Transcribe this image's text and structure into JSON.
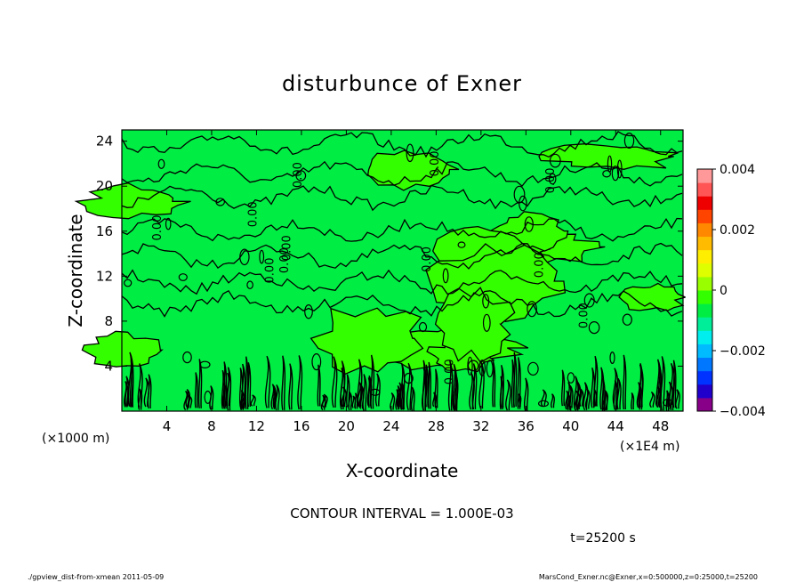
{
  "chart_data": {
    "type": "heatmap",
    "title": "disturbunce of Exner",
    "xlabel": "X-coordinate",
    "ylabel": "Z-coordinate",
    "x_unit": "(×1000 m)",
    "x_unit_secondary": "(×1E4 m)",
    "x_ticks": [
      4,
      8,
      12,
      16,
      20,
      24,
      28,
      32,
      36,
      40,
      44,
      48
    ],
    "y_ticks": [
      4,
      8,
      12,
      16,
      20,
      24
    ],
    "xlim": [
      0,
      50
    ],
    "ylim": [
      0,
      25
    ],
    "colorbar": {
      "ticks": [
        0.004,
        0.002,
        0,
        -0.002,
        -0.004
      ],
      "tick_labels": [
        "0.004",
        "0.002",
        "0",
        "−0.002",
        "−0.004"
      ],
      "range": [
        -0.004,
        0.004
      ],
      "colors": [
        "#880088",
        "#2200cc",
        "#0033ff",
        "#0077ff",
        "#00bbff",
        "#00eeee",
        "#00ee99",
        "#00ee44",
        "#33ff00",
        "#99ff00",
        "#ddff00",
        "#ffee00",
        "#ffbb00",
        "#ff8800",
        "#ff4400",
        "#ee0000",
        "#ff5555",
        "#ff9999"
      ]
    },
    "field_colors": {
      "background": "#00ee44",
      "positive": "#33ff00"
    },
    "contour_labels": [
      "0.00",
      "0.00",
      "0.00",
      "0.00",
      "0.00",
      "0.00",
      "0.00",
      "0.00",
      "0.00",
      "0.00",
      "0.00",
      "0.00"
    ],
    "contour_interval_text": "CONTOUR INTERVAL = 1.000E-03",
    "time_text": "t=25200 s"
  },
  "footer": {
    "left": "./gpview_dist-from-xmean  2011-05-09",
    "right": "MarsCond_Exner.nc@Exner,x=0:500000,z=0:25000,t=25200"
  }
}
